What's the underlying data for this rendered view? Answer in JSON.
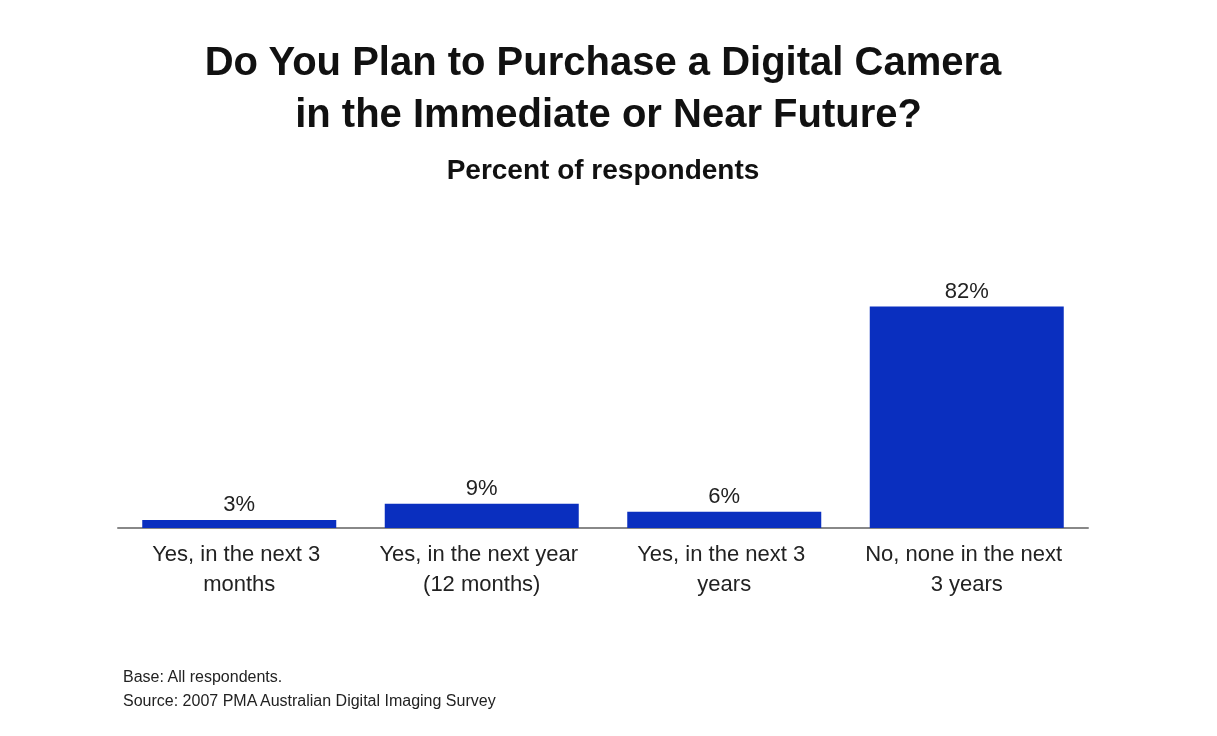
{
  "chart_data": {
    "type": "bar",
    "title": "Do You Plan to Purchase a Digital Camera in the Immediate or Near Future?",
    "subtitle": "Percent of respondents",
    "categories": [
      "Yes, in the next 3 months",
      "Yes, in the next year (12 months)",
      "Yes, in the next 3 years",
      "No, none in the next 3 years"
    ],
    "values": [
      3,
      9,
      6,
      82
    ],
    "color": "#0a2fbf",
    "value_labels": [
      "3%",
      "9%",
      "6%",
      "82%"
    ],
    "annotations": [
      "Base: All respondents.",
      "Source: 2007 PMA Australian Digital Imaging Survey"
    ]
  }
}
